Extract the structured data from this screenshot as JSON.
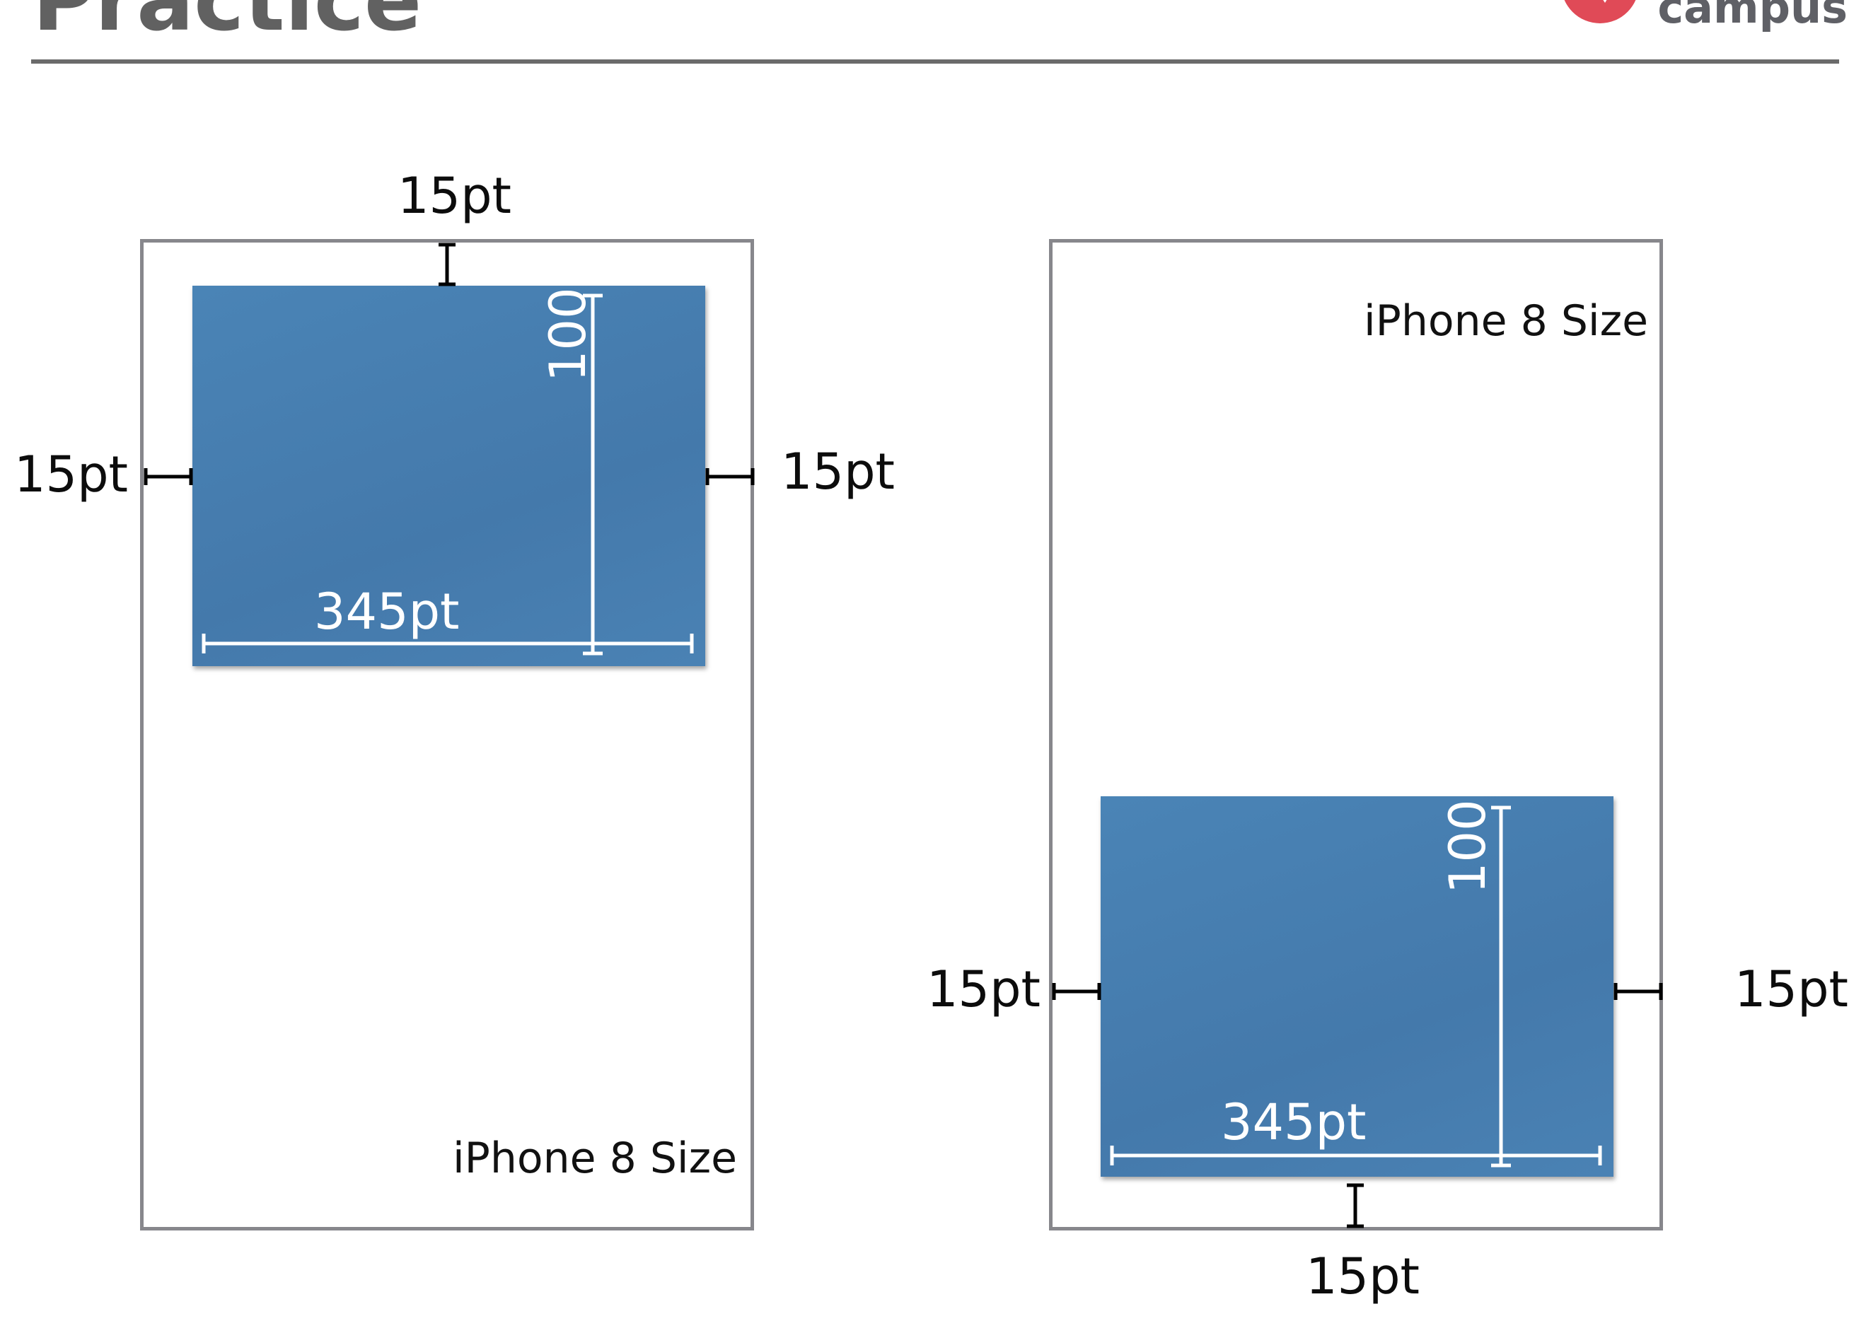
{
  "header": {
    "title": "Practice",
    "brand_text": "campus",
    "brand_color": "#e04a57"
  },
  "colors": {
    "frame": "#87878c",
    "box": "#4680b3",
    "dimension_line_light": "#ffffff",
    "dimension_line_dark": "#000000"
  },
  "left_panel": {
    "device_label": "iPhone 8 Size",
    "margin_top": "15pt",
    "margin_left": "15pt",
    "margin_right": "15pt",
    "box_width": "345pt",
    "box_height": "100"
  },
  "right_panel": {
    "device_label": "iPhone 8 Size",
    "margin_bottom": "15pt",
    "margin_left": "15pt",
    "margin_right": "15pt",
    "box_width": "345pt",
    "box_height": "100"
  }
}
